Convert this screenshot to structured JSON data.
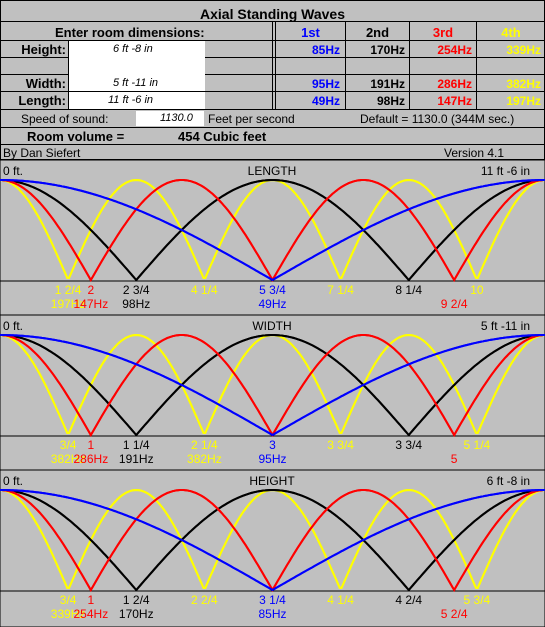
{
  "title": "Axial Standing Waves",
  "inputs": {
    "heading": "Enter room dimensions:",
    "height_label": "Height:",
    "height_value": "6 ft   -8 in",
    "width_label": "Width:",
    "width_value": "5 ft   -11 in",
    "length_label": "Length:",
    "length_value": "11 ft   -6 in"
  },
  "harmonics": {
    "headers": [
      "1st",
      "2nd",
      "3rd",
      "4th"
    ],
    "header_colors": [
      "#0000ff",
      "#000000",
      "#ff0000",
      "#ffff00"
    ],
    "height": [
      "85Hz",
      "170Hz",
      "254Hz",
      "339Hz"
    ],
    "width": [
      "95Hz",
      "191Hz",
      "286Hz",
      "382Hz"
    ],
    "length": [
      "49Hz",
      "98Hz",
      "147Hz",
      "197Hz"
    ]
  },
  "sound": {
    "label": "Speed of sound:",
    "value": "1130.0",
    "unit": "Feet per second",
    "default": "Default = 1130.0 (344M sec.)"
  },
  "volume": {
    "label": "Room volume =",
    "value": "454 Cubic feet"
  },
  "footer": {
    "author": "By Dan Siefert",
    "version": "Version 4.1"
  },
  "colors": {
    "first": "#0000ff",
    "second": "#000000",
    "third": "#ff0000",
    "fourth": "#ffff00",
    "background": "#c0c0c0",
    "input_bg": "#ffffff"
  },
  "diagrams": [
    {
      "key": "length",
      "title": "LENGTH",
      "start": "0 ft.",
      "end": "11 ft -6 in",
      "positions": [
        {
          "text": "1 2/4",
          "color": "#ffff00",
          "frac": 0.125
        },
        {
          "text": "2",
          "color": "#ff0000",
          "frac": 0.1667
        },
        {
          "text": "2 3/4",
          "color": "#000000",
          "frac": 0.25
        },
        {
          "text": "4 1/4",
          "color": "#ffff00",
          "frac": 0.375
        },
        {
          "text": "5 3/4",
          "color": "#0000ff",
          "frac": 0.5
        },
        {
          "text": "7 1/4",
          "color": "#ffff00",
          "frac": 0.625
        },
        {
          "text": "8 1/4",
          "color": "#000000",
          "frac": 0.75
        },
        {
          "text": "10",
          "color": "#ffff00",
          "frac": 0.875
        }
      ],
      "freqs": [
        {
          "text": "197Hz",
          "color": "#ffff00",
          "frac": 0.125
        },
        {
          "text": "147Hz",
          "color": "#ff0000",
          "frac": 0.1667
        },
        {
          "text": "98Hz",
          "color": "#000000",
          "frac": 0.25
        },
        {
          "text": "49Hz",
          "color": "#0000ff",
          "frac": 0.5
        },
        {
          "text": "9 2/4",
          "color": "#ff0000",
          "frac": 0.8333
        }
      ]
    },
    {
      "key": "width",
      "title": "WIDTH",
      "start": "0 ft.",
      "end": "5 ft -11 in",
      "positions": [
        {
          "text": "3/4",
          "color": "#ffff00",
          "frac": 0.125
        },
        {
          "text": "1",
          "color": "#ff0000",
          "frac": 0.1667
        },
        {
          "text": "1 1/4",
          "color": "#000000",
          "frac": 0.25
        },
        {
          "text": "2 1/4",
          "color": "#ffff00",
          "frac": 0.375
        },
        {
          "text": "3",
          "color": "#0000ff",
          "frac": 0.5
        },
        {
          "text": "3 3/4",
          "color": "#ffff00",
          "frac": 0.625
        },
        {
          "text": "3 3/4",
          "color": "#000000",
          "frac": 0.75
        },
        {
          "text": "5 1/4",
          "color": "#ffff00",
          "frac": 0.875
        }
      ],
      "freqs": [
        {
          "text": "382Hz",
          "color": "#ffff00",
          "frac": 0.125
        },
        {
          "text": "286Hz",
          "color": "#ff0000",
          "frac": 0.1667
        },
        {
          "text": "191Hz",
          "color": "#000000",
          "frac": 0.25
        },
        {
          "text": "382Hz",
          "color": "#ffff00",
          "frac": 0.375
        },
        {
          "text": "95Hz",
          "color": "#0000ff",
          "frac": 0.5
        },
        {
          "text": "5",
          "color": "#ff0000",
          "frac": 0.8333
        }
      ]
    },
    {
      "key": "height",
      "title": "HEIGHT",
      "start": "0 ft.",
      "end": "6 ft -8 in",
      "positions": [
        {
          "text": "3/4",
          "color": "#ffff00",
          "frac": 0.125
        },
        {
          "text": "1",
          "color": "#ff0000",
          "frac": 0.1667
        },
        {
          "text": "1 2/4",
          "color": "#000000",
          "frac": 0.25
        },
        {
          "text": "2 2/4",
          "color": "#ffff00",
          "frac": 0.375
        },
        {
          "text": "3 1/4",
          "color": "#0000ff",
          "frac": 0.5
        },
        {
          "text": "4 1/4",
          "color": "#ffff00",
          "frac": 0.625
        },
        {
          "text": "4 2/4",
          "color": "#000000",
          "frac": 0.75
        },
        {
          "text": "5 3/4",
          "color": "#ffff00",
          "frac": 0.875
        }
      ],
      "freqs": [
        {
          "text": "339Hz",
          "color": "#ffff00",
          "frac": 0.125
        },
        {
          "text": "254Hz",
          "color": "#ff0000",
          "frac": 0.1667
        },
        {
          "text": "170Hz",
          "color": "#000000",
          "frac": 0.25
        },
        {
          "text": "85Hz",
          "color": "#0000ff",
          "frac": 0.5
        },
        {
          "text": "5 2/4",
          "color": "#ff0000",
          "frac": 0.8333
        }
      ]
    }
  ]
}
